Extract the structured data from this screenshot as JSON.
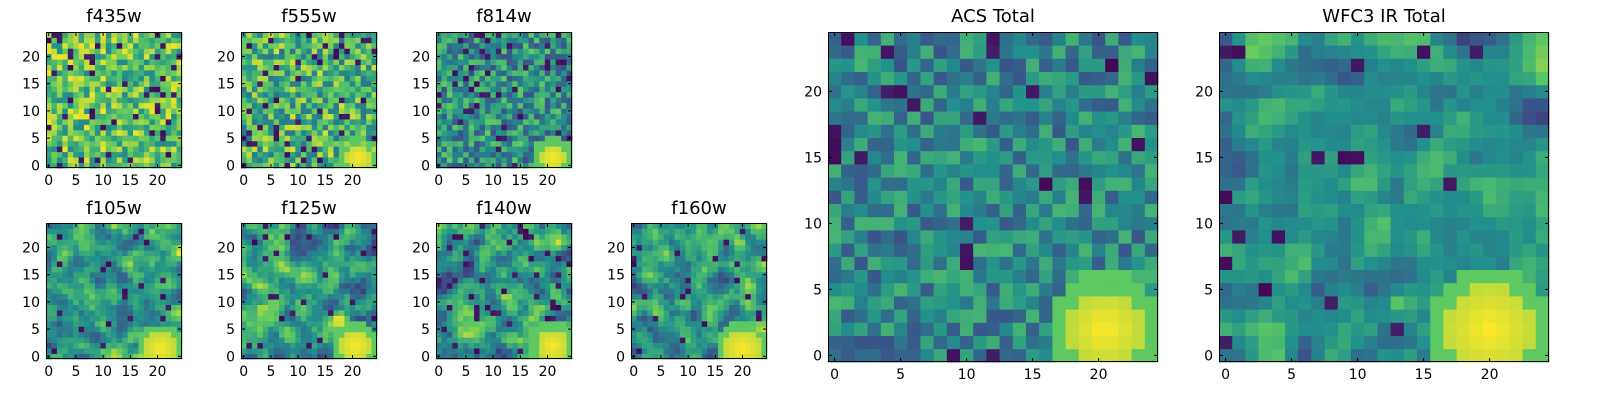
{
  "figure": {
    "colormap": "viridis",
    "colormap_stops": [
      "#440154",
      "#3b528b",
      "#21918c",
      "#5ec962",
      "#fde725"
    ]
  },
  "chart_data": [
    {
      "type": "heatmap",
      "title": "f435w",
      "grid_size": 25,
      "xlim": [
        0,
        24
      ],
      "ylim": [
        0,
        24
      ],
      "xticks": [
        0,
        5,
        10,
        15,
        20
      ],
      "yticks": [
        0,
        5,
        10,
        15,
        20
      ],
      "seed": 11,
      "base": 0.72,
      "spread": 0.26,
      "dark_frac": 0.08,
      "bright_blob": null,
      "texture": "pixel"
    },
    {
      "type": "heatmap",
      "title": "f555w",
      "grid_size": 25,
      "xlim": [
        0,
        24
      ],
      "ylim": [
        0,
        24
      ],
      "xticks": [
        0,
        5,
        10,
        15,
        20
      ],
      "yticks": [
        0,
        5,
        10,
        15,
        20
      ],
      "seed": 23,
      "base": 0.66,
      "spread": 0.28,
      "dark_frac": 0.07,
      "bright_blob": {
        "x": 21,
        "y": 1.5,
        "r": 2.5
      },
      "texture": "pixel"
    },
    {
      "type": "heatmap",
      "title": "f814w",
      "grid_size": 25,
      "xlim": [
        0,
        24
      ],
      "ylim": [
        0,
        24
      ],
      "xticks": [
        0,
        5,
        10,
        15,
        20
      ],
      "yticks": [
        0,
        5,
        10,
        15,
        20
      ],
      "seed": 37,
      "base": 0.5,
      "spread": 0.26,
      "dark_frac": 0.08,
      "bright_blob": {
        "x": 21,
        "y": 1.5,
        "r": 2.5
      },
      "texture": "pixel"
    },
    {
      "type": "heatmap",
      "title": "f105w",
      "grid_size": 25,
      "xlim": [
        0,
        24
      ],
      "ylim": [
        0,
        24
      ],
      "xticks": [
        0,
        5,
        10,
        15,
        20
      ],
      "yticks": [
        0,
        5,
        10,
        15,
        20
      ],
      "seed": 41,
      "base": 0.55,
      "spread": 0.24,
      "dark_frac": 0.04,
      "bright_blob": {
        "x": 20.5,
        "y": 1.5,
        "r": 3
      },
      "texture": "smooth"
    },
    {
      "type": "heatmap",
      "title": "f125w",
      "grid_size": 25,
      "xlim": [
        0,
        24
      ],
      "ylim": [
        0,
        24
      ],
      "xticks": [
        0,
        5,
        10,
        15,
        20
      ],
      "yticks": [
        0,
        5,
        10,
        15,
        20
      ],
      "seed": 53,
      "base": 0.55,
      "spread": 0.26,
      "dark_frac": 0.05,
      "bright_blob": {
        "x": 20.5,
        "y": 2,
        "r": 3
      },
      "texture": "smooth"
    },
    {
      "type": "heatmap",
      "title": "f140w",
      "grid_size": 25,
      "xlim": [
        0,
        24
      ],
      "ylim": [
        0,
        24
      ],
      "xticks": [
        0,
        5,
        10,
        15,
        20
      ],
      "yticks": [
        0,
        5,
        10,
        15,
        20
      ],
      "seed": 67,
      "base": 0.55,
      "spread": 0.27,
      "dark_frac": 0.05,
      "bright_blob": {
        "x": 21,
        "y": 2,
        "r": 3
      },
      "texture": "smooth"
    },
    {
      "type": "heatmap",
      "title": "f160w",
      "grid_size": 25,
      "xlim": [
        0,
        24
      ],
      "ylim": [
        0,
        24
      ],
      "xticks": [
        0,
        5,
        10,
        15,
        20
      ],
      "yticks": [
        0,
        5,
        10,
        15,
        20
      ],
      "seed": 79,
      "base": 0.56,
      "spread": 0.25,
      "dark_frac": 0.05,
      "bright_blob": {
        "x": 20,
        "y": 1.5,
        "r": 3.5
      },
      "texture": "smooth"
    },
    {
      "type": "heatmap",
      "title": "ACS Total",
      "grid_size": 25,
      "xlim": [
        0,
        24
      ],
      "ylim": [
        0,
        24
      ],
      "xticks": [
        0,
        5,
        10,
        15,
        20
      ],
      "yticks": [
        0,
        5,
        10,
        15,
        20
      ],
      "seed": 97,
      "base": 0.46,
      "spread": 0.2,
      "dark_frac": 0.05,
      "bright_blob": {
        "x": 20.5,
        "y": 2,
        "r": 2.8
      },
      "texture": "pixel"
    },
    {
      "type": "heatmap",
      "title": "WFC3 IR Total",
      "grid_size": 25,
      "xlim": [
        0,
        24
      ],
      "ylim": [
        0,
        24
      ],
      "xticks": [
        0,
        5,
        10,
        15,
        20
      ],
      "yticks": [
        0,
        5,
        10,
        15,
        20
      ],
      "seed": 113,
      "base": 0.5,
      "spread": 0.2,
      "dark_frac": 0.04,
      "bright_blob": {
        "x": 20,
        "y": 2,
        "r": 3.5
      },
      "texture": "smooth"
    }
  ]
}
